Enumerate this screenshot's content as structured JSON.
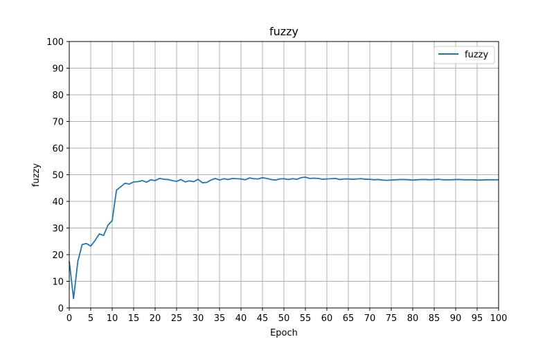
{
  "chart_data": {
    "type": "line",
    "title": "fuzzy",
    "xlabel": "Epoch",
    "ylabel": "fuzzy",
    "xlim": [
      0,
      100
    ],
    "ylim": [
      0,
      100
    ],
    "xticks": [
      0,
      5,
      10,
      15,
      20,
      25,
      30,
      35,
      40,
      45,
      50,
      55,
      60,
      65,
      70,
      75,
      80,
      85,
      90,
      95,
      100
    ],
    "yticks": [
      0,
      10,
      20,
      30,
      40,
      50,
      60,
      70,
      80,
      90,
      100
    ],
    "grid": true,
    "legend_position": "top-right",
    "series": [
      {
        "name": "fuzzy",
        "color": "#1f77b4",
        "x": [
          0,
          1,
          2,
          3,
          4,
          5,
          6,
          7,
          8,
          9,
          10,
          11,
          12,
          13,
          14,
          15,
          16,
          17,
          18,
          19,
          20,
          21,
          22,
          23,
          24,
          25,
          26,
          27,
          28,
          29,
          30,
          31,
          32,
          33,
          34,
          35,
          36,
          37,
          38,
          39,
          40,
          41,
          42,
          43,
          44,
          45,
          46,
          47,
          48,
          49,
          50,
          51,
          52,
          53,
          54,
          55,
          56,
          57,
          58,
          59,
          60,
          61,
          62,
          63,
          64,
          65,
          66,
          67,
          68,
          69,
          70,
          71,
          72,
          73,
          74,
          75,
          76,
          77,
          78,
          79,
          80,
          81,
          82,
          83,
          84,
          85,
          86,
          87,
          88,
          89,
          90,
          91,
          92,
          93,
          94,
          95,
          96,
          97,
          98,
          99,
          100
        ],
        "y": [
          17.5,
          3.5,
          17.5,
          23.8,
          24.2,
          23.2,
          25.3,
          27.8,
          27.2,
          31.0,
          32.8,
          44.2,
          45.5,
          46.8,
          46.5,
          47.3,
          47.4,
          47.8,
          47.2,
          48.1,
          47.8,
          48.6,
          48.3,
          48.2,
          47.8,
          47.5,
          48.2,
          47.3,
          47.7,
          47.4,
          48.3,
          47.0,
          47.1,
          48.0,
          48.6,
          48.0,
          48.5,
          48.2,
          48.6,
          48.5,
          48.4,
          48.1,
          48.8,
          48.5,
          48.4,
          48.9,
          48.6,
          48.2,
          48.0,
          48.4,
          48.5,
          48.2,
          48.5,
          48.3,
          48.9,
          49.1,
          48.6,
          48.7,
          48.6,
          48.3,
          48.4,
          48.5,
          48.6,
          48.2,
          48.4,
          48.4,
          48.3,
          48.4,
          48.5,
          48.3,
          48.3,
          48.1,
          48.2,
          48.0,
          47.9,
          48.0,
          48.1,
          48.2,
          48.2,
          48.1,
          48.0,
          48.1,
          48.2,
          48.2,
          48.1,
          48.2,
          48.3,
          48.1,
          48.1,
          48.1,
          48.2,
          48.2,
          48.1,
          48.1,
          48.1,
          48.0,
          48.0,
          48.1,
          48.1,
          48.1,
          48.1
        ]
      }
    ]
  }
}
